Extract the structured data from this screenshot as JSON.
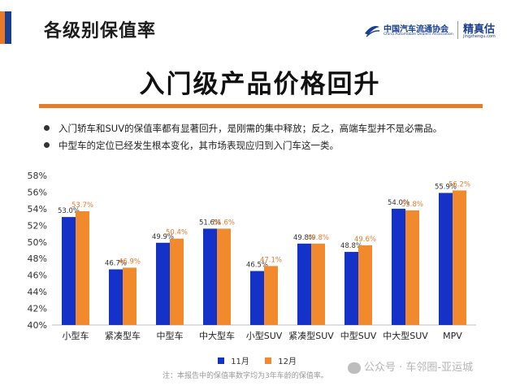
{
  "page": {
    "section_title": "各级别保值率",
    "headline": "入门级产品价格回升",
    "bullets": [
      "入门轿车和SUV的保值率都有显著回升，是刚需的集中释放；反之，高端车型并不是必需品。",
      "中型车的定位已经发生根本变化，其市场表现应归到入门车这一类。"
    ],
    "footnote": "注：本报告中的保值率数字均为3年车龄的保值率。",
    "watermark": "公众号 · 车邻圈-亚运城"
  },
  "logos": {
    "association_cn": "中国汽车流通协会",
    "association_en": "China Automobile Dealers Association",
    "jzg_cn": "精真估",
    "jzg_en": "jingzhengu.com"
  },
  "colors": {
    "series_nov": "#1432c8",
    "series_dec": "#f08a2c",
    "accent": "#e9792b",
    "brand": "#1a3f8f"
  },
  "chart_data": {
    "type": "bar",
    "categories": [
      "小型车",
      "紧凑型车",
      "中型车",
      "中大型车",
      "小型SUV",
      "紧凑型SUV",
      "中型SUV",
      "中大型SUV",
      "MPV"
    ],
    "series": [
      {
        "name": "11月",
        "values": [
          53.0,
          46.7,
          49.9,
          51.6,
          46.5,
          49.8,
          48.8,
          54.0,
          55.9
        ]
      },
      {
        "name": "12月",
        "values": [
          53.7,
          46.9,
          50.4,
          51.6,
          47.1,
          49.8,
          49.6,
          53.8,
          56.2
        ]
      }
    ],
    "value_labels": [
      [
        "53.0%",
        "46.7%",
        "49.9%",
        "51.6%",
        "46.5%",
        "49.8%",
        "48.8%",
        "54.0%",
        "55.9%"
      ],
      [
        "53.7%",
        "46.9%",
        "50.4%",
        "51.6%",
        "47.1%",
        "49.8%",
        "49.6%",
        "53.8%",
        "56.2%"
      ]
    ],
    "y_ticks": [
      "40%",
      "42%",
      "44%",
      "46%",
      "48%",
      "50%",
      "52%",
      "54%",
      "56%",
      "58%"
    ],
    "ylim": [
      40,
      58
    ],
    "y_unit": "%",
    "grid": false,
    "legend": "bottom"
  }
}
